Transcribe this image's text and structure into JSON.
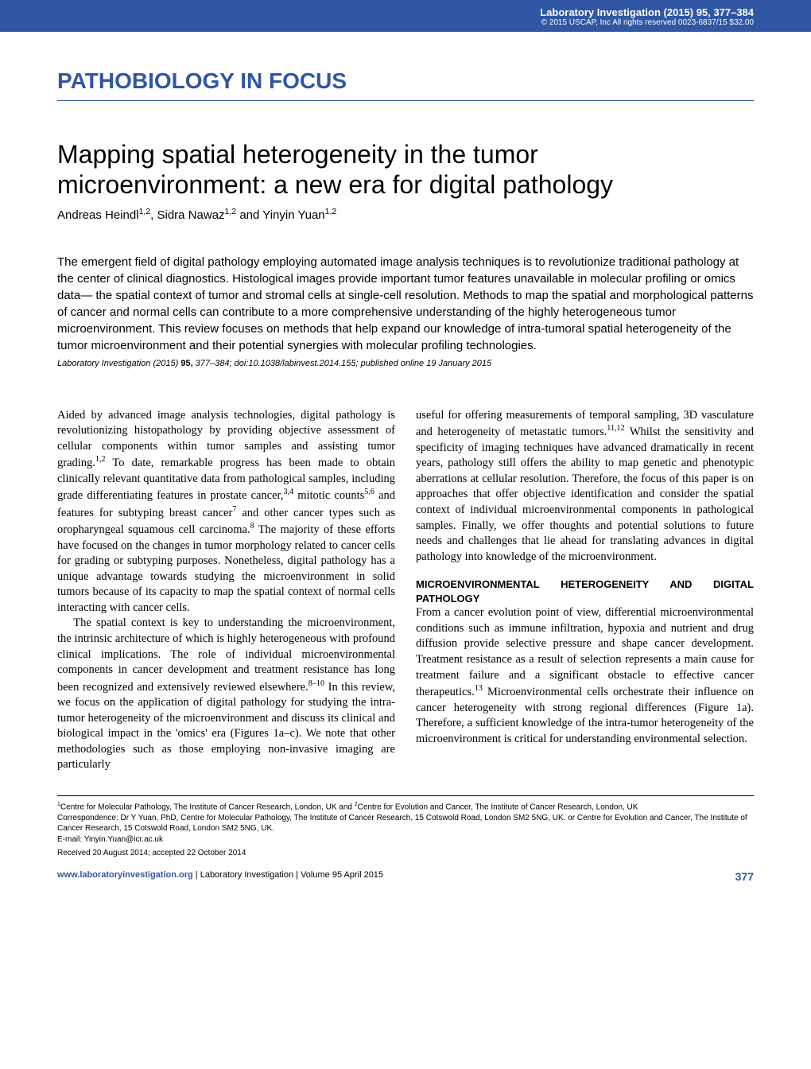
{
  "banner": {
    "title": "Laboratory Investigation (2015) 95, 377–384",
    "sub": "© 2015 USCAP, Inc   All rights reserved 0023-6837/15  $32.00"
  },
  "section": "PATHOBIOLOGY IN FOCUS",
  "title": "Mapping spatial heterogeneity in the tumor microenvironment: a new era for digital pathology",
  "authors_html": "Andreas Heindl<sup>1,2</sup>, Sidra Nawaz<sup>1,2</sup> and Yinyin Yuan<sup>1,2</sup>",
  "abstract": "The emergent field of digital pathology employing automated image analysis techniques is to revolutionize traditional pathology at the center of clinical diagnostics. Histological images provide important tumor features unavailable in molecular profiling or omics data— the spatial context of tumor and stromal cells at single-cell resolution. Methods to map the spatial and morphological patterns of cancer and normal cells can contribute to a more comprehensive understanding of the highly heterogeneous tumor microenvironment. This review focuses on methods that help expand our knowledge of intra-tumoral spatial heterogeneity of the tumor microenvironment and their potential synergies with molecular profiling technologies.",
  "cite_html": "Laboratory Investigation (2015) <b>95,</b> 377–384; doi:10.1038/labinvest.2014.155; published online 19 January 2015",
  "col_left": {
    "p1_html": "Aided by advanced image analysis technologies, digital pathology is revolutionizing histopathology by providing objective assessment of cellular components within tumor samples and assisting tumor grading.<sup>1,2</sup> To date, remarkable progress has been made to obtain clinically relevant quantitative data from pathological samples, including grade differentiating features in prostate cancer,<sup>3,4</sup> mitotic counts<sup>5,6</sup> and features for subtyping breast cancer<sup>7</sup> and other cancer types such as oropharyngeal squamous cell carcinoma.<sup>8</sup> The majority of these efforts have focused on the changes in tumor morphology related to cancer cells for grading or subtyping purposes. Nonetheless, digital pathology has a unique advantage towards studying the microenvironment in solid tumors because of its capacity to map the spatial context of normal cells interacting with cancer cells.",
    "p2_html": "The spatial context is key to understanding the microenvironment, the intrinsic architecture of which is highly heterogeneous with profound clinical implications. The role of individual microenvironmental components in cancer development and treatment resistance has long been recognized and extensively reviewed elsewhere.<sup>8–10</sup> In this review, we focus on the application of digital pathology for studying the intra-tumor heterogeneity of the microenvironment and discuss its clinical and biological impact in the 'omics' era (Figures 1a–c). We note that other methodologies such as those employing non-invasive imaging are particularly"
  },
  "col_right": {
    "p1_html": "useful for offering measurements of temporal sampling, 3D vasculature and heterogeneity of metastatic tumors.<sup>11,12</sup> Whilst the sensitivity and specificity of imaging techniques have advanced dramatically in recent years, pathology still offers the ability to map genetic and phenotypic aberrations at cellular resolution. Therefore, the focus of this paper is on approaches that offer objective identification and consider the spatial context of individual microenvironmental components in pathological samples. Finally, we offer thoughts and potential solutions to future needs and challenges that lie ahead for translating advances in digital pathology into knowledge of the microenvironment.",
    "h2": "MICROENVIRONMENTAL HETEROGENEITY AND DIGITAL PATHOLOGY",
    "p2_html": "From a cancer evolution point of view, differential microenvironmental conditions such as immune infiltration, hypoxia and nutrient and drug diffusion provide selective pressure and shape cancer development. Treatment resistance as a result of selection represents a main cause for treatment failure and a significant obstacle to effective cancer therapeutics.<sup>13</sup> Microenvironmental cells orchestrate their influence on cancer heterogeneity with strong regional differences (Figure 1a). Therefore, a sufficient knowledge of the intra-tumor heterogeneity of the microenvironment is critical for understanding environmental selection."
  },
  "footnotes": {
    "affil_html": "<sup>1</sup>Centre for Molecular Pathology, The Institute of Cancer Research, London, UK and <sup>2</sup>Centre for Evolution and Cancer, The Institute of Cancer Research, London, UK",
    "corr": "Correspondence: Dr Y Yuan, PhD, Centre for Molecular Pathology, The Institute of Cancer Research, 15 Cotswold Road, London SM2 5NG, UK. or Centre for Evolution and Cancer, The Institute of Cancer Research, 15 Cotswold Road, London SM2 5NG, UK.",
    "email": "E-mail: Yinyin.Yuan@icr.ac.uk",
    "received": "Received 20 August 2014; accepted 22 October 2014"
  },
  "footer": {
    "link": "www.laboratoryinvestigation.org",
    "mid": " | Laboratory Investigation | Volume 95 April 2015",
    "page": "377"
  },
  "colors": {
    "brand": "#3156a3"
  }
}
